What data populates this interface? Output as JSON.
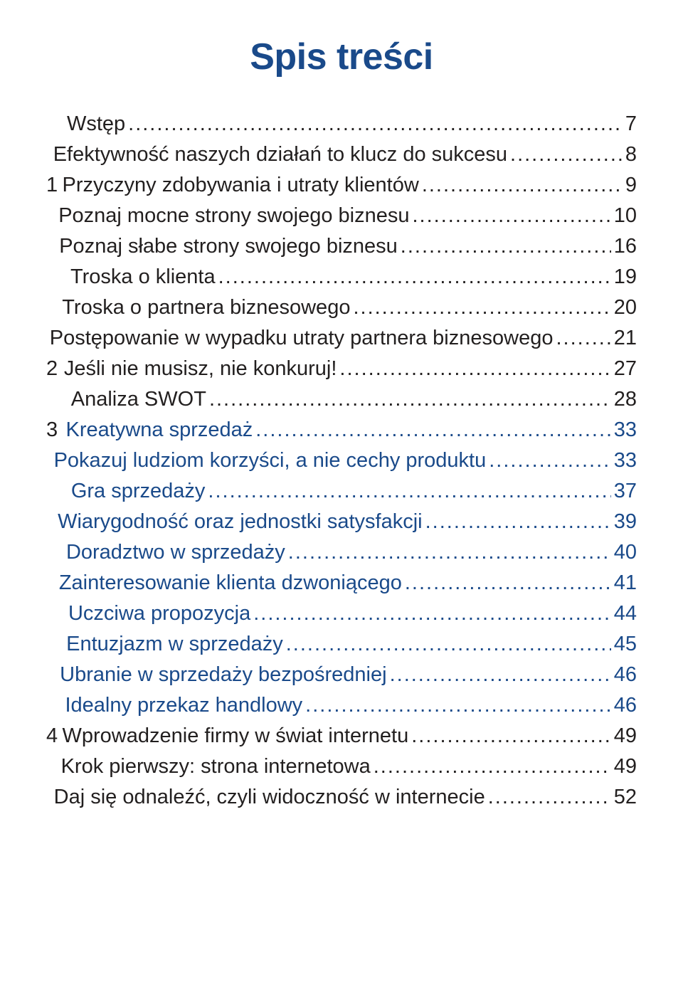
{
  "title": {
    "text": "Spis treści",
    "color": "#1a4a8a",
    "fontsize": 52
  },
  "toc": {
    "fontsize": 29,
    "line_spacing": 10,
    "normal_color": "#221f1f",
    "link_color": "#1a4a8a",
    "dot_color_normal": "#221f1f",
    "dot_color_link": "#1a4a8a",
    "indent_num": 0,
    "indent_level1": 88,
    "indent_level2": 130,
    "num_col_width": 40,
    "entries": [
      {
        "num": "",
        "label": "Wstęp",
        "page": "7",
        "indent": 1,
        "link": false
      },
      {
        "num": "",
        "label": "Efektywność naszych działań to klucz do sukcesu",
        "page": "8",
        "indent": 2,
        "link": false
      },
      {
        "num": "1",
        "label": "Przyczyny zdobywania i utraty klientów",
        "page": "9",
        "indent": 1,
        "link": false
      },
      {
        "num": "",
        "label": "Poznaj mocne strony swojego biznesu",
        "page": "10",
        "indent": 2,
        "link": false
      },
      {
        "num": "",
        "label": "Poznaj słabe strony swojego biznesu",
        "page": "16",
        "indent": 2,
        "link": false
      },
      {
        "num": "",
        "label": "Troska o klienta",
        "page": "19",
        "indent": 2,
        "link": false
      },
      {
        "num": "",
        "label": "Troska o partnera biznesowego",
        "page": "20",
        "indent": 2,
        "link": false
      },
      {
        "num": "",
        "label": "Postępowanie w wypadku utraty partnera biznesowego",
        "page": "21",
        "indent": 2,
        "link": false
      },
      {
        "num": "2",
        "label": "Jeśli nie musisz, nie konkuruj!",
        "page": "27",
        "indent": 1,
        "link": false
      },
      {
        "num": "",
        "label": "Analiza SWOT",
        "page": "28",
        "indent": 2,
        "link": false
      },
      {
        "num": "3",
        "label": "Kreatywna sprzedaż",
        "page": "33",
        "indent": 1,
        "link": true
      },
      {
        "num": "",
        "label": "Pokazuj ludziom korzyści, a nie cechy produktu",
        "page": "33",
        "indent": 2,
        "link": true
      },
      {
        "num": "",
        "label": "Gra sprzedaży",
        "page": "37",
        "indent": 2,
        "link": true
      },
      {
        "num": "",
        "label": "Wiarygodność oraz jednostki satysfakcji",
        "page": "39",
        "indent": 2,
        "link": true
      },
      {
        "num": "",
        "label": "Doradztwo w sprzedaży",
        "page": "40",
        "indent": 2,
        "link": true
      },
      {
        "num": "",
        "label": "Zainteresowanie klienta dzwoniącego",
        "page": "41",
        "indent": 2,
        "link": true
      },
      {
        "num": "",
        "label": "Uczciwa propozycja",
        "page": "44",
        "indent": 2,
        "link": true
      },
      {
        "num": "",
        "label": "Entuzjazm w sprzedaży",
        "page": "45",
        "indent": 2,
        "link": true
      },
      {
        "num": "",
        "label": "Ubranie w sprzedaży bezpośredniej",
        "page": "46",
        "indent": 2,
        "link": true
      },
      {
        "num": "",
        "label": "Idealny przekaz handlowy",
        "page": "46",
        "indent": 2,
        "link": true
      },
      {
        "num": "4",
        "label": "Wprowadzenie firmy w świat internetu",
        "page": "49",
        "indent": 1,
        "link": false
      },
      {
        "num": "",
        "label": "Krok pierwszy: strona internetowa",
        "page": "49",
        "indent": 2,
        "link": false
      },
      {
        "num": "",
        "label": "Daj się odnaleźć, czyli widoczność w internecie",
        "page": "52",
        "indent": 2,
        "link": false
      }
    ]
  }
}
